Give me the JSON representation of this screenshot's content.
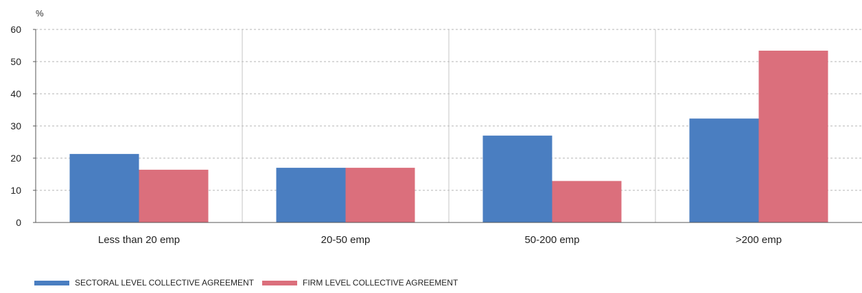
{
  "chart_data": {
    "type": "bar",
    "unit_label": "%",
    "categories": [
      "Less than 20 emp",
      "20-50 emp",
      "50-200 emp",
      ">200 emp"
    ],
    "series": [
      {
        "name": "SECTORAL LEVEL COLLECTIVE AGREEMENT",
        "color": "#4a7ec1",
        "values": [
          21.3,
          17.0,
          27.0,
          32.3
        ]
      },
      {
        "name": "FIRM LEVEL COLLECTIVE AGREEMENT",
        "color": "#db6f7c",
        "values": [
          16.4,
          17.0,
          12.9,
          53.4
        ]
      }
    ],
    "ylim": [
      0,
      60
    ],
    "yticks": [
      0,
      10,
      20,
      30,
      40,
      50,
      60
    ],
    "grid": true,
    "legend_position": "bottom-left"
  }
}
